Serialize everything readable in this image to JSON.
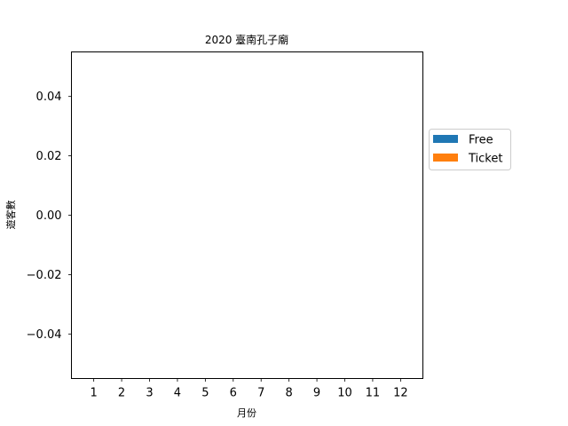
{
  "chart_data": {
    "type": "bar",
    "title": "2020 臺南孔子廟",
    "xlabel": "月份",
    "ylabel": "遊客數",
    "categories": [
      "1",
      "2",
      "3",
      "4",
      "5",
      "6",
      "7",
      "8",
      "9",
      "10",
      "11",
      "12"
    ],
    "series": [
      {
        "name": "Free",
        "color": "#1f77b4",
        "values": [
          0,
          0,
          0,
          0,
          0,
          0,
          0,
          0,
          0,
          0,
          0,
          0
        ]
      },
      {
        "name": "Ticket",
        "color": "#ff7f0e",
        "values": [
          0,
          0,
          0,
          0,
          0,
          0,
          0,
          0,
          0,
          0,
          0,
          0
        ]
      }
    ],
    "ylim": [
      -0.055,
      0.055
    ],
    "yticks": [
      "0.04",
      "0.02",
      "0.00",
      "−0.02",
      "−0.04"
    ],
    "ytick_values": [
      0.04,
      0.02,
      0.0,
      -0.02,
      -0.04
    ],
    "stacked": true,
    "grid": false,
    "legend_position": "outside-right"
  }
}
